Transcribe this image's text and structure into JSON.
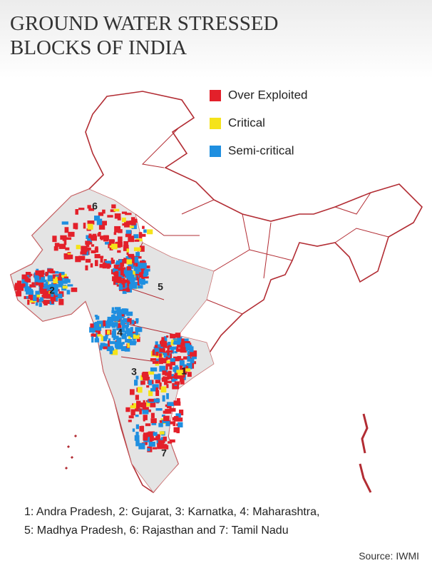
{
  "title": [
    "GROUND WATER STRESSED",
    "BLOCKS OF INDIA"
  ],
  "legend": [
    {
      "label": "Over Exploited",
      "color": "#e3202a"
    },
    {
      "label": "Critical",
      "color": "#f5e31a"
    },
    {
      "label": "Semi-critical",
      "color": "#1f8fe0"
    }
  ],
  "map_labels": [
    "6",
    "2",
    "5",
    "4",
    "3",
    "1",
    "7"
  ],
  "note": [
    "1: Andra Pradesh, 2: Gujarat, 3: Karnatka, 4: Maharashtra,",
    "5: Madhya Pradesh, 6: Rajasthan and 7: Tamil Nadu"
  ],
  "source": "Source: IWMI"
}
